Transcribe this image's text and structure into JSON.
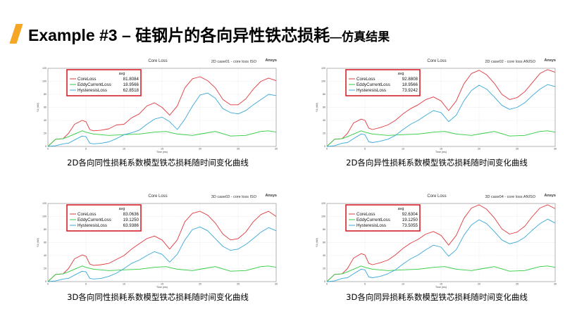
{
  "slide": {
    "title": "Example #3 – 硅钢片的各向异性铁芯损耗",
    "title_suffix": "—仿真结果",
    "accent_color": "#f5a623"
  },
  "chart_data": [
    {
      "type": "line",
      "title": "Core Loss",
      "case_label": "2D case01 - core loss ISO",
      "brand": "Ansys",
      "caption": "2D各向同性损耗系数模型铁芯损耗随时间变化曲线",
      "xlabel": "Time (ms)",
      "ylabel": "Y1 (kW)",
      "xlim": [
        0,
        30
      ],
      "ylim": [
        0,
        120
      ],
      "x_ticks": [
        0,
        5,
        10,
        15,
        20,
        25,
        30
      ],
      "y_ticks": [
        0,
        20,
        40,
        60,
        80,
        100,
        120
      ],
      "grid": true,
      "legend_header": "avg",
      "series": [
        {
          "name": "CoreLoss",
          "avg": "81.8084",
          "color": "#e0393e",
          "x": [
            0,
            1,
            2,
            2.7,
            3.5,
            4.5,
            5,
            5.5,
            6,
            7,
            8,
            9,
            10,
            11,
            12,
            13,
            14,
            15,
            16,
            17,
            18,
            19,
            20,
            21,
            22,
            23,
            24,
            25,
            26,
            27,
            28,
            29,
            30
          ],
          "y": [
            0,
            11,
            12,
            20,
            34,
            40,
            38,
            26,
            24,
            25,
            27,
            33,
            34,
            44,
            50,
            62,
            67,
            60,
            48,
            62,
            90,
            104,
            107,
            101,
            90,
            72,
            64,
            64,
            73,
            88,
            100,
            105,
            101
          ]
        },
        {
          "name": "EddyCurrentLoss",
          "avg": "18.9566",
          "color": "#2ecc40",
          "x": [
            0,
            1,
            2,
            2.7,
            3.5,
            4.5,
            5,
            6,
            8,
            10,
            12,
            14,
            15.5,
            17,
            19,
            20.5,
            22,
            24,
            26,
            28,
            29,
            30
          ],
          "y": [
            0,
            11,
            12,
            15,
            19,
            24,
            22,
            19,
            17,
            18,
            19,
            22,
            23,
            19,
            17,
            20,
            23,
            16,
            17,
            23,
            24,
            22
          ]
        },
        {
          "name": "HysteresisLoss",
          "avg": "62.8518",
          "color": "#3aa8d8",
          "x": [
            0,
            1,
            2,
            2.7,
            3.5,
            4.5,
            5,
            5.5,
            6,
            7,
            8,
            9,
            10,
            11,
            12,
            13,
            14,
            15,
            16,
            17,
            18,
            19,
            20,
            21,
            22,
            23,
            24,
            25,
            26,
            27,
            28,
            29,
            30
          ],
          "y": [
            0,
            1,
            4,
            5,
            10,
            16,
            15,
            5,
            4,
            5,
            7,
            12,
            18,
            21,
            25,
            34,
            42,
            45,
            38,
            26,
            42,
            62,
            79,
            82,
            74,
            58,
            52,
            50,
            55,
            64,
            72,
            80,
            78
          ]
        }
      ]
    },
    {
      "type": "line",
      "title": "Core Loss",
      "case_label": "2D case02 - core loss ANISO",
      "brand": "Ansys",
      "caption": "2D各向异性损耗系数模型铁芯损耗随时间变化曲线",
      "xlabel": "Time (ms)",
      "ylabel": "Y1 (kW)",
      "xlim": [
        0,
        30
      ],
      "ylim": [
        0,
        120
      ],
      "x_ticks": [
        0,
        5,
        10,
        15,
        20,
        25,
        30
      ],
      "y_ticks": [
        0,
        20,
        40,
        60,
        80,
        100,
        120
      ],
      "grid": true,
      "legend_header": "avg",
      "series": [
        {
          "name": "CoreLoss",
          "avg": "92.8808",
          "color": "#e0393e",
          "x": [
            0,
            1,
            2,
            2.7,
            3.5,
            4.5,
            5,
            5.5,
            6,
            7,
            8,
            9,
            10,
            11,
            12,
            13,
            14,
            15,
            16,
            17,
            18,
            19,
            20,
            21,
            22,
            23,
            24,
            25,
            26,
            27,
            28,
            29,
            30
          ],
          "y": [
            0,
            11,
            12,
            20,
            36,
            42,
            40,
            28,
            26,
            29,
            33,
            40,
            50,
            58,
            64,
            72,
            76,
            70,
            55,
            70,
            96,
            112,
            117,
            110,
            97,
            80,
            72,
            75,
            84,
            98,
            112,
            118,
            114
          ]
        },
        {
          "name": "EddyCurrentLoss",
          "avg": "18.9566",
          "color": "#2ecc40",
          "x": [
            0,
            1,
            2,
            2.7,
            3.5,
            4.5,
            5,
            6,
            8,
            10,
            12,
            14,
            15.5,
            17,
            19,
            20.5,
            22,
            24,
            26,
            28,
            29,
            30
          ],
          "y": [
            0,
            11,
            12,
            15,
            19,
            24,
            22,
            19,
            17,
            18,
            19,
            22,
            23,
            19,
            17,
            20,
            23,
            16,
            17,
            23,
            24,
            22
          ]
        },
        {
          "name": "HysteresisLoss",
          "avg": "73.9242",
          "color": "#3aa8d8",
          "x": [
            0,
            1,
            2,
            2.7,
            3.5,
            4.5,
            5,
            5.5,
            6,
            7,
            8,
            9,
            10,
            11,
            12,
            13,
            14,
            15,
            16,
            17,
            18,
            19,
            20,
            21,
            22,
            23,
            24,
            25,
            26,
            27,
            28,
            29,
            30
          ],
          "y": [
            0,
            1,
            5,
            6,
            12,
            19,
            18,
            7,
            6,
            8,
            11,
            17,
            26,
            34,
            40,
            48,
            55,
            52,
            38,
            48,
            70,
            86,
            94,
            88,
            76,
            63,
            57,
            60,
            67,
            78,
            88,
            95,
            92
          ]
        }
      ]
    },
    {
      "type": "line",
      "title": "Core Loss",
      "case_label": "3D case03 - core loss ISO",
      "brand": "Ansys",
      "caption": "3D各向同性损耗系数模型铁芯损耗随时间变化曲线",
      "xlabel": "Time (ms)",
      "ylabel": "Y1 (kW)",
      "xlim": [
        0,
        30
      ],
      "ylim": [
        0,
        120
      ],
      "x_ticks": [
        0,
        5,
        10,
        15,
        20,
        25,
        30
      ],
      "y_ticks": [
        0,
        20,
        40,
        60,
        80,
        100,
        120
      ],
      "grid": true,
      "legend_header": "avg",
      "series": [
        {
          "name": "CoreLoss",
          "avg": "83.0636",
          "color": "#e0393e",
          "x": [
            0,
            1,
            2,
            2.7,
            3.5,
            4.5,
            5,
            5.5,
            6,
            7,
            8,
            9,
            10,
            11,
            12,
            13,
            14,
            15,
            16,
            17,
            18,
            19,
            20,
            21,
            22,
            23,
            24,
            25,
            26,
            27,
            28,
            29,
            30
          ],
          "y": [
            0,
            11,
            12,
            20,
            35,
            41,
            39,
            27,
            25,
            26,
            28,
            34,
            40,
            50,
            58,
            66,
            70,
            64,
            50,
            64,
            92,
            105,
            108,
            102,
            90,
            73,
            64,
            66,
            76,
            92,
            103,
            108,
            100
          ]
        },
        {
          "name": "EddyCurrentLoss",
          "avg": "19.1250",
          "color": "#2ecc40",
          "x": [
            0,
            1,
            2,
            2.7,
            3.5,
            4.5,
            5,
            6,
            8,
            10,
            12,
            14,
            15.5,
            17,
            19,
            20.5,
            22,
            24,
            26,
            28,
            29,
            30
          ],
          "y": [
            0,
            11,
            12,
            15,
            19,
            24,
            22,
            19,
            17,
            18,
            19,
            22,
            23,
            19,
            17,
            20,
            23,
            16,
            17,
            23,
            24,
            22
          ]
        },
        {
          "name": "HysteresisLoss",
          "avg": "63.9386",
          "color": "#3aa8d8",
          "x": [
            0,
            1,
            2,
            2.7,
            3.5,
            4.5,
            5,
            5.5,
            6,
            7,
            8,
            9,
            10,
            11,
            12,
            13,
            14,
            15,
            16,
            17,
            18,
            19,
            20,
            21,
            22,
            23,
            24,
            25,
            26,
            27,
            28,
            29,
            30
          ],
          "y": [
            0,
            1,
            4,
            5,
            10,
            16,
            15,
            5,
            4,
            5,
            8,
            13,
            20,
            28,
            33,
            40,
            46,
            42,
            30,
            42,
            64,
            80,
            84,
            78,
            66,
            54,
            48,
            50,
            57,
            66,
            76,
            83,
            78
          ]
        }
      ]
    },
    {
      "type": "line",
      "title": "Core Loss",
      "case_label": "3D case04 - core loss ANISO",
      "brand": "Ansys",
      "caption": "3D各向同异损耗系数模型铁芯损耗随时间变化曲线",
      "xlabel": "Time (ms)",
      "ylabel": "Y1 (kW)",
      "xlim": [
        0,
        30
      ],
      "ylim": [
        0,
        120
      ],
      "x_ticks": [
        0,
        5,
        10,
        15,
        20,
        25,
        30
      ],
      "y_ticks": [
        0,
        20,
        40,
        60,
        80,
        100,
        120
      ],
      "grid": true,
      "legend_header": "avg",
      "series": [
        {
          "name": "CoreLoss",
          "avg": "92.6304",
          "color": "#e0393e",
          "x": [
            0,
            1,
            2,
            2.7,
            3.5,
            4.5,
            5,
            5.5,
            6,
            7,
            8,
            9,
            10,
            11,
            12,
            13,
            14,
            15,
            16,
            17,
            18,
            19,
            20,
            21,
            22,
            23,
            24,
            25,
            26,
            27,
            28,
            29,
            30
          ],
          "y": [
            0,
            11,
            12,
            20,
            36,
            43,
            41,
            28,
            26,
            29,
            33,
            41,
            51,
            59,
            65,
            73,
            77,
            71,
            56,
            71,
            97,
            113,
            118,
            111,
            98,
            81,
            73,
            76,
            85,
            100,
            113,
            118,
            112
          ]
        },
        {
          "name": "EddyCurrentLoss",
          "avg": "19.1250",
          "color": "#2ecc40",
          "x": [
            0,
            1,
            2,
            2.7,
            3.5,
            4.5,
            5,
            6,
            8,
            10,
            12,
            14,
            15.5,
            17,
            19,
            20.5,
            22,
            24,
            26,
            28,
            29,
            30
          ],
          "y": [
            0,
            11,
            12,
            15,
            19,
            24,
            22,
            19,
            17,
            18,
            19,
            22,
            23,
            19,
            17,
            20,
            23,
            16,
            17,
            23,
            24,
            22
          ]
        },
        {
          "name": "HysteresisLoss",
          "avg": "73.5055",
          "color": "#3aa8d8",
          "x": [
            0,
            1,
            2,
            2.7,
            3.5,
            4.5,
            5,
            5.5,
            6,
            7,
            8,
            9,
            10,
            11,
            12,
            13,
            14,
            15,
            16,
            17,
            18,
            19,
            20,
            21,
            22,
            23,
            24,
            25,
            26,
            27,
            28,
            29,
            30
          ],
          "y": [
            0,
            1,
            5,
            6,
            12,
            19,
            18,
            7,
            6,
            8,
            12,
            18,
            27,
            35,
            41,
            49,
            56,
            53,
            39,
            49,
            71,
            87,
            95,
            89,
            77,
            64,
            58,
            61,
            68,
            79,
            89,
            96,
            90
          ]
        }
      ]
    }
  ]
}
